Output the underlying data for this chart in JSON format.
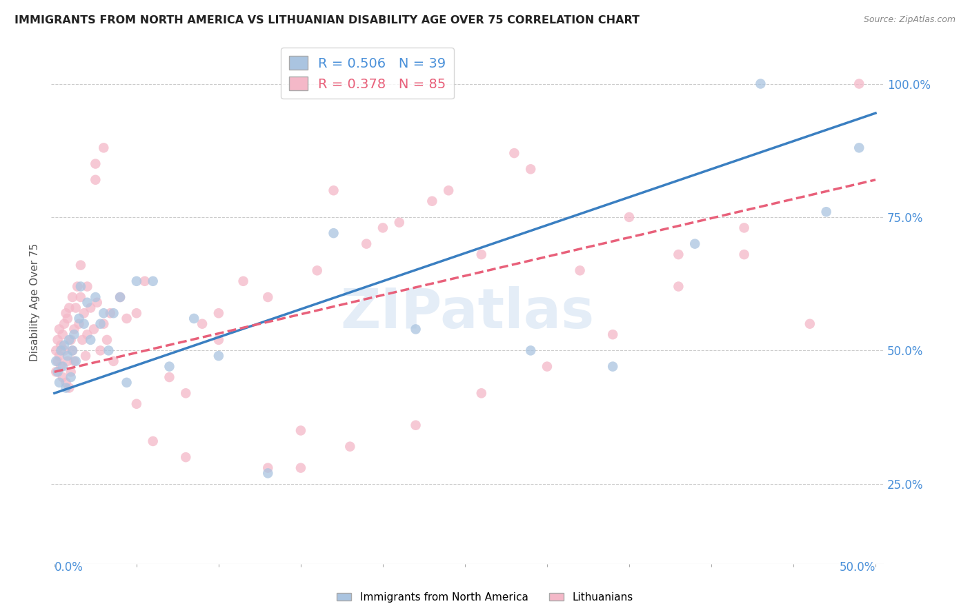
{
  "title": "IMMIGRANTS FROM NORTH AMERICA VS LITHUANIAN DISABILITY AGE OVER 75 CORRELATION CHART",
  "source": "Source: ZipAtlas.com",
  "ylabel": "Disability Age Over 75",
  "yticks_labels": [
    "100.0%",
    "75.0%",
    "50.0%",
    "25.0%"
  ],
  "ytick_vals": [
    1.0,
    0.75,
    0.5,
    0.25
  ],
  "xlim": [
    0,
    0.5
  ],
  "ylim": [
    0.1,
    1.08
  ],
  "legend1_R": "0.506",
  "legend1_N": "39",
  "legend2_R": "0.378",
  "legend2_N": "85",
  "color_blue": "#aac4e0",
  "color_pink": "#f4b8c8",
  "trendline_blue": "#3a7fc1",
  "trendline_pink": "#e8607a",
  "watermark_text": "ZIPatlas",
  "blue_intercept": 0.42,
  "blue_slope": 1.05,
  "pink_intercept": 0.46,
  "pink_slope": 0.72,
  "blue_points_x": [
    0.001,
    0.002,
    0.003,
    0.004,
    0.005,
    0.006,
    0.007,
    0.008,
    0.009,
    0.01,
    0.011,
    0.012,
    0.013,
    0.015,
    0.016,
    0.018,
    0.02,
    0.022,
    0.025,
    0.028,
    0.03,
    0.033,
    0.036,
    0.04,
    0.044,
    0.05,
    0.06,
    0.07,
    0.085,
    0.1,
    0.13,
    0.17,
    0.22,
    0.29,
    0.34,
    0.39,
    0.43,
    0.47,
    0.49
  ],
  "blue_points_y": [
    0.48,
    0.46,
    0.44,
    0.5,
    0.47,
    0.51,
    0.43,
    0.49,
    0.52,
    0.45,
    0.5,
    0.53,
    0.48,
    0.56,
    0.62,
    0.55,
    0.59,
    0.52,
    0.6,
    0.55,
    0.57,
    0.5,
    0.57,
    0.6,
    0.44,
    0.63,
    0.63,
    0.47,
    0.56,
    0.49,
    0.27,
    0.72,
    0.54,
    0.5,
    0.47,
    0.7,
    1.0,
    0.76,
    0.88
  ],
  "pink_points_x": [
    0.001,
    0.001,
    0.002,
    0.002,
    0.003,
    0.003,
    0.004,
    0.004,
    0.005,
    0.005,
    0.006,
    0.006,
    0.007,
    0.007,
    0.008,
    0.008,
    0.009,
    0.009,
    0.01,
    0.01,
    0.011,
    0.011,
    0.012,
    0.012,
    0.013,
    0.014,
    0.015,
    0.016,
    0.017,
    0.018,
    0.019,
    0.02,
    0.022,
    0.024,
    0.026,
    0.028,
    0.03,
    0.032,
    0.034,
    0.036,
    0.04,
    0.044,
    0.05,
    0.055,
    0.06,
    0.07,
    0.08,
    0.09,
    0.1,
    0.115,
    0.13,
    0.15,
    0.17,
    0.19,
    0.21,
    0.23,
    0.26,
    0.29,
    0.32,
    0.35,
    0.025,
    0.03,
    0.15,
    0.18,
    0.22,
    0.26,
    0.3,
    0.34,
    0.38,
    0.42,
    0.016,
    0.02,
    0.025,
    0.05,
    0.08,
    0.1,
    0.13,
    0.16,
    0.2,
    0.24,
    0.28,
    0.38,
    0.42,
    0.46,
    0.49
  ],
  "pink_points_y": [
    0.5,
    0.46,
    0.52,
    0.48,
    0.54,
    0.49,
    0.51,
    0.47,
    0.53,
    0.45,
    0.55,
    0.5,
    0.57,
    0.44,
    0.56,
    0.48,
    0.58,
    0.43,
    0.52,
    0.46,
    0.6,
    0.5,
    0.54,
    0.48,
    0.58,
    0.62,
    0.55,
    0.6,
    0.52,
    0.57,
    0.49,
    0.53,
    0.58,
    0.54,
    0.59,
    0.5,
    0.55,
    0.52,
    0.57,
    0.48,
    0.6,
    0.56,
    0.57,
    0.63,
    0.33,
    0.45,
    0.3,
    0.55,
    0.57,
    0.63,
    0.28,
    0.35,
    0.8,
    0.7,
    0.74,
    0.78,
    0.68,
    0.84,
    0.65,
    0.75,
    0.85,
    0.88,
    0.28,
    0.32,
    0.36,
    0.42,
    0.47,
    0.53,
    0.62,
    0.68,
    0.66,
    0.62,
    0.82,
    0.4,
    0.42,
    0.52,
    0.6,
    0.65,
    0.73,
    0.8,
    0.87,
    0.68,
    0.73,
    0.55,
    1.0
  ]
}
